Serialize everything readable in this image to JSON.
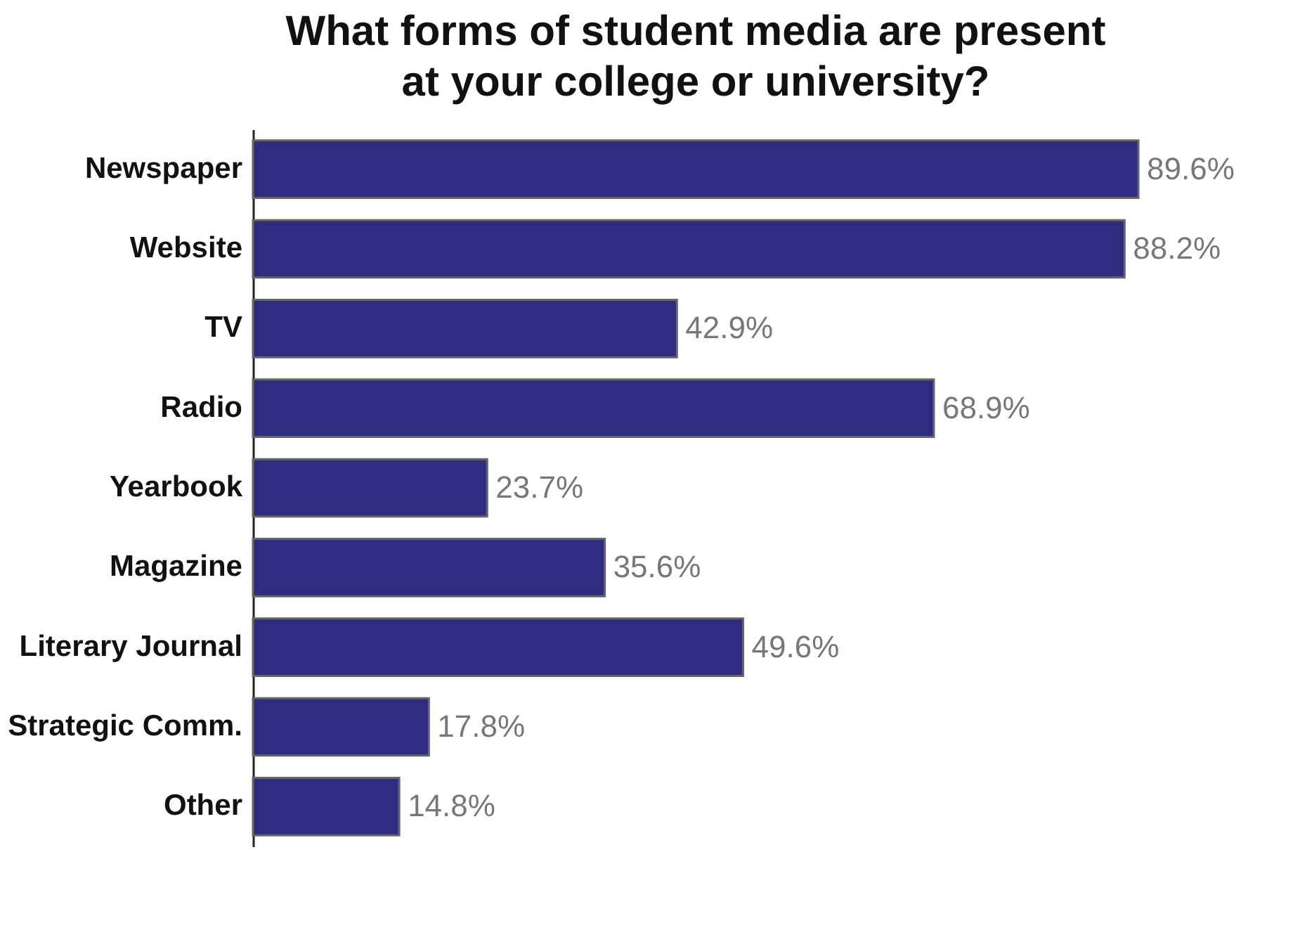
{
  "chart_data": {
    "type": "bar",
    "orientation": "horizontal",
    "title": "What forms of student media are present\nat your college or university?",
    "categories": [
      "Newspaper",
      "Website",
      "TV",
      "Radio",
      "Yearbook",
      "Magazine",
      "Literary Journal",
      "Strategic Comm.",
      "Other"
    ],
    "values": [
      89.6,
      88.2,
      42.9,
      68.9,
      23.7,
      35.6,
      49.6,
      17.8,
      14.8
    ],
    "value_labels": [
      "89.6%",
      "88.2%",
      "42.9%",
      "68.9%",
      "23.7%",
      "35.6%",
      "49.6%",
      "17.8%",
      "14.8%"
    ],
    "color": "#2e2c7f",
    "grid": false
  }
}
